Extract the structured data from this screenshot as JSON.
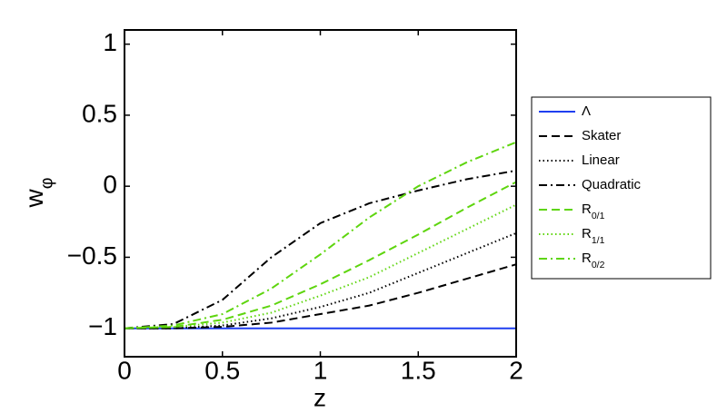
{
  "chart_data": {
    "type": "line",
    "ylabel": "wφ",
    "xlabel": "z",
    "x": [
      0,
      0.25,
      0.5,
      0.75,
      1,
      1.25,
      1.5,
      1.75,
      2
    ],
    "xlim": [
      0,
      2
    ],
    "xticks": [
      0,
      0.5,
      1,
      1.5,
      2
    ],
    "ylim": [
      -1.2,
      1.1
    ],
    "yticks": [
      {
        "value": -1,
        "label": "−1"
      },
      {
        "value": -0.5,
        "label": "−0.5"
      },
      0,
      0.5,
      1
    ],
    "legend": "outside right",
    "series": [
      {
        "name": "Λ",
        "color": "#1f3ff0",
        "style": "solid",
        "values": [
          -1,
          -1,
          -1,
          -1,
          -1,
          -1,
          -1,
          -1,
          -1
        ]
      },
      {
        "name": "Skater",
        "color": "#000000",
        "style": "dashed",
        "values": [
          -1,
          -1,
          -0.99,
          -0.96,
          -0.9,
          -0.84,
          -0.75,
          -0.65,
          -0.55
        ]
      },
      {
        "name": "Linear",
        "color": "#000000",
        "style": "dotted",
        "values": [
          -1,
          -1,
          -0.98,
          -0.93,
          -0.85,
          -0.75,
          -0.61,
          -0.47,
          -0.33
        ]
      },
      {
        "name": "Quadratic",
        "color": "#000000",
        "style": "dashdot",
        "values": [
          -1,
          -0.97,
          -0.8,
          -0.5,
          -0.26,
          -0.12,
          -0.03,
          0.05,
          0.11
        ]
      },
      {
        "name": "R0/1",
        "color": "#5ed50e",
        "style": "dashed",
        "values": [
          -1,
          -0.99,
          -0.94,
          -0.84,
          -0.69,
          -0.52,
          -0.34,
          -0.15,
          0.03
        ]
      },
      {
        "name": "R1/1",
        "color": "#5ed50e",
        "style": "dotted",
        "values": [
          -1,
          -0.99,
          -0.96,
          -0.89,
          -0.77,
          -0.64,
          -0.47,
          -0.3,
          -0.13
        ]
      },
      {
        "name": "R0/2",
        "color": "#5ed50e",
        "style": "dashdot",
        "values": [
          -1,
          -0.98,
          -0.9,
          -0.72,
          -0.48,
          -0.22,
          0.0,
          0.17,
          0.31
        ]
      }
    ]
  }
}
